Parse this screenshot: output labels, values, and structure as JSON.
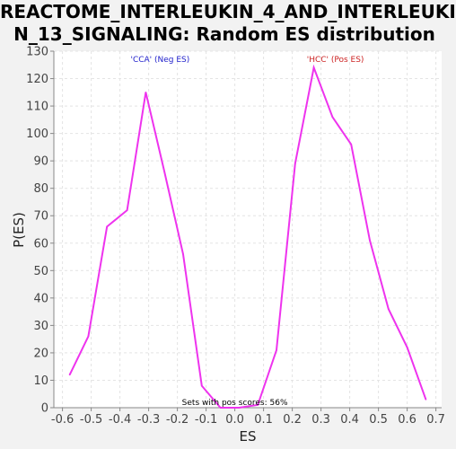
{
  "chart_data": {
    "type": "line",
    "title": "REACTOME_INTERLEUKIN_4_AND_INTERLEUKIN_13_SIGNALING: Random ES distribution",
    "title_lines": [
      "REACTOME_INTERLEUKIN_4_AND_INTERLEUKI",
      "N_13_SIGNALING: Random ES distribution"
    ],
    "xlabel": "ES",
    "ylabel": "P(ES)",
    "xlim": [
      -0.63,
      0.72
    ],
    "ylim": [
      0,
      130
    ],
    "xticks": [
      -0.6,
      -0.5,
      -0.4,
      -0.3,
      -0.2,
      -0.1,
      0.0,
      0.1,
      0.2,
      0.3,
      0.4,
      0.5,
      0.6,
      0.7
    ],
    "xtick_labels": [
      "-0.6",
      "-0.5",
      "-0.4",
      "-0.3",
      "-0.2",
      "-0.1",
      "0.0",
      "0.1",
      "0.2",
      "0.3",
      "0.4",
      "0.5",
      "0.6",
      "0.7"
    ],
    "yticks": [
      0,
      10,
      20,
      30,
      40,
      50,
      60,
      70,
      80,
      90,
      100,
      110,
      120,
      130
    ],
    "grid": true,
    "line_color": "#ee33ee",
    "series": [
      {
        "x": [
          -0.575,
          -0.51,
          -0.445,
          -0.375,
          -0.31,
          -0.245,
          -0.18,
          -0.115,
          -0.05,
          0.015,
          0.08,
          0.145,
          0.21,
          0.275,
          0.34,
          0.405,
          0.47,
          0.535,
          0.6,
          0.665
        ],
        "values": [
          12,
          26,
          66,
          72,
          115,
          86,
          56,
          8,
          0,
          0,
          1,
          21,
          89,
          124,
          106,
          96,
          61,
          36,
          22,
          3
        ]
      }
    ],
    "annotations": [
      {
        "text": "'CCA' (Neg ES)",
        "x": -0.26,
        "y": 126,
        "color": "#2222cc"
      },
      {
        "text": "'HCC' (Pos ES)",
        "x": 0.35,
        "y": 126,
        "color": "#cc2222"
      },
      {
        "text": "Sets with pos scores: 56%",
        "x": 0.0,
        "y": 1,
        "color": "#000000"
      }
    ]
  }
}
